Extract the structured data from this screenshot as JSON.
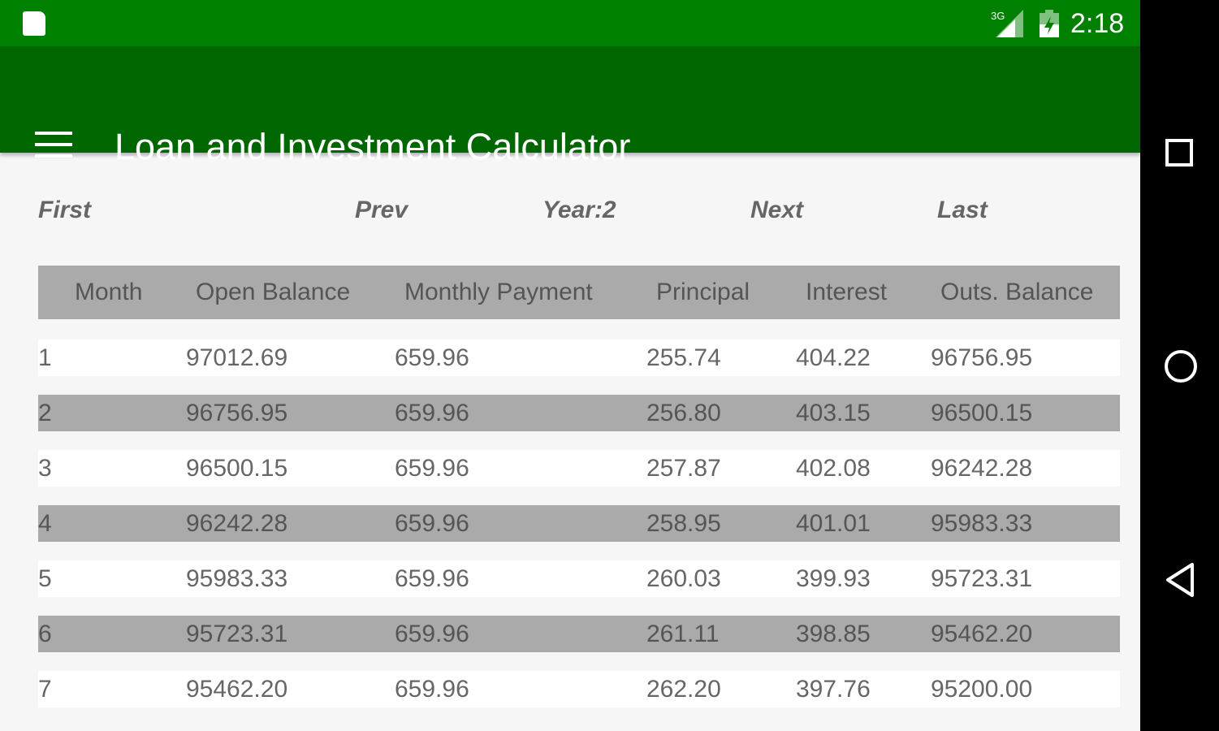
{
  "status_bar": {
    "network": "3G",
    "time": "2:18",
    "icons": [
      "sd-card-icon",
      "signal-icon",
      "battery-charging-icon"
    ]
  },
  "app_bar": {
    "title": "Loan and Investment Calculator",
    "menu_icon": "hamburger-menu-icon"
  },
  "pager": {
    "first": "First",
    "prev": "Prev",
    "year": "Year:2",
    "next": "Next",
    "last": "Last"
  },
  "table": {
    "headers": [
      "Month",
      "Open Balance",
      "Monthly Payment",
      "Principal",
      "Interest",
      "Outs. Balance"
    ],
    "rows": [
      [
        "1",
        "97012.69",
        "659.96",
        "255.74",
        "404.22",
        "96756.95"
      ],
      [
        "2",
        "96756.95",
        "659.96",
        "256.80",
        "403.15",
        "96500.15"
      ],
      [
        "3",
        "96500.15",
        "659.96",
        "257.87",
        "402.08",
        "96242.28"
      ],
      [
        "4",
        "96242.28",
        "659.96",
        "258.95",
        "401.01",
        "95983.33"
      ],
      [
        "5",
        "95983.33",
        "659.96",
        "260.03",
        "399.93",
        "95723.31"
      ],
      [
        "6",
        "95723.31",
        "659.96",
        "261.11",
        "398.85",
        "95462.20"
      ],
      [
        "7",
        "95462.20",
        "659.96",
        "262.20",
        "397.76",
        "95200.00"
      ]
    ]
  },
  "colors": {
    "status_bar": "#008000",
    "app_bar": "#006600",
    "header_row": "#aaaaaa",
    "alt_row": "#aaaaaa"
  }
}
